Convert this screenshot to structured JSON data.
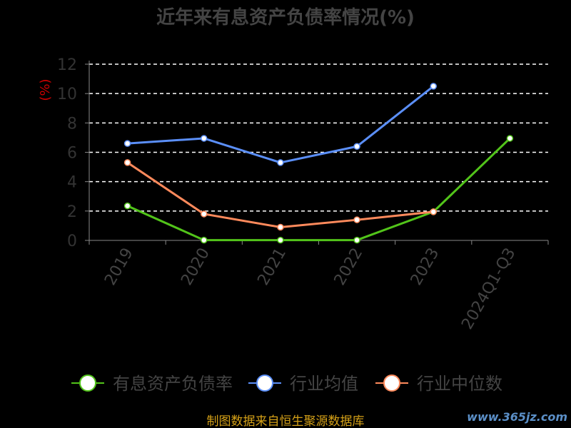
{
  "chart_data": {
    "type": "line",
    "title": "近年来有息资产负债率情况(%)",
    "ylabel": "(%)",
    "categories": [
      "2019",
      "2020",
      "2021",
      "2022",
      "2023",
      "2024Q1-Q3"
    ],
    "ylim": [
      0,
      12
    ],
    "yticks": [
      0,
      2,
      4,
      6,
      8,
      10,
      12
    ],
    "grid": true,
    "legend_position": "bottom",
    "series": [
      {
        "name": "有息资产负债率",
        "color": "#52c41a",
        "values": [
          2.35,
          0.02,
          0.02,
          0.02,
          1.95,
          6.95
        ]
      },
      {
        "name": "行业均值",
        "color": "#5b8ff9",
        "values": [
          6.6,
          6.95,
          5.3,
          6.4,
          10.5,
          null
        ]
      },
      {
        "name": "行业中位数",
        "color": "#ff8a5c",
        "values": [
          5.3,
          1.8,
          0.9,
          1.4,
          1.95,
          null
        ]
      }
    ]
  },
  "footer": {
    "source": "制图数据来自恒生聚源数据库"
  },
  "watermark": "www.365jz.com"
}
